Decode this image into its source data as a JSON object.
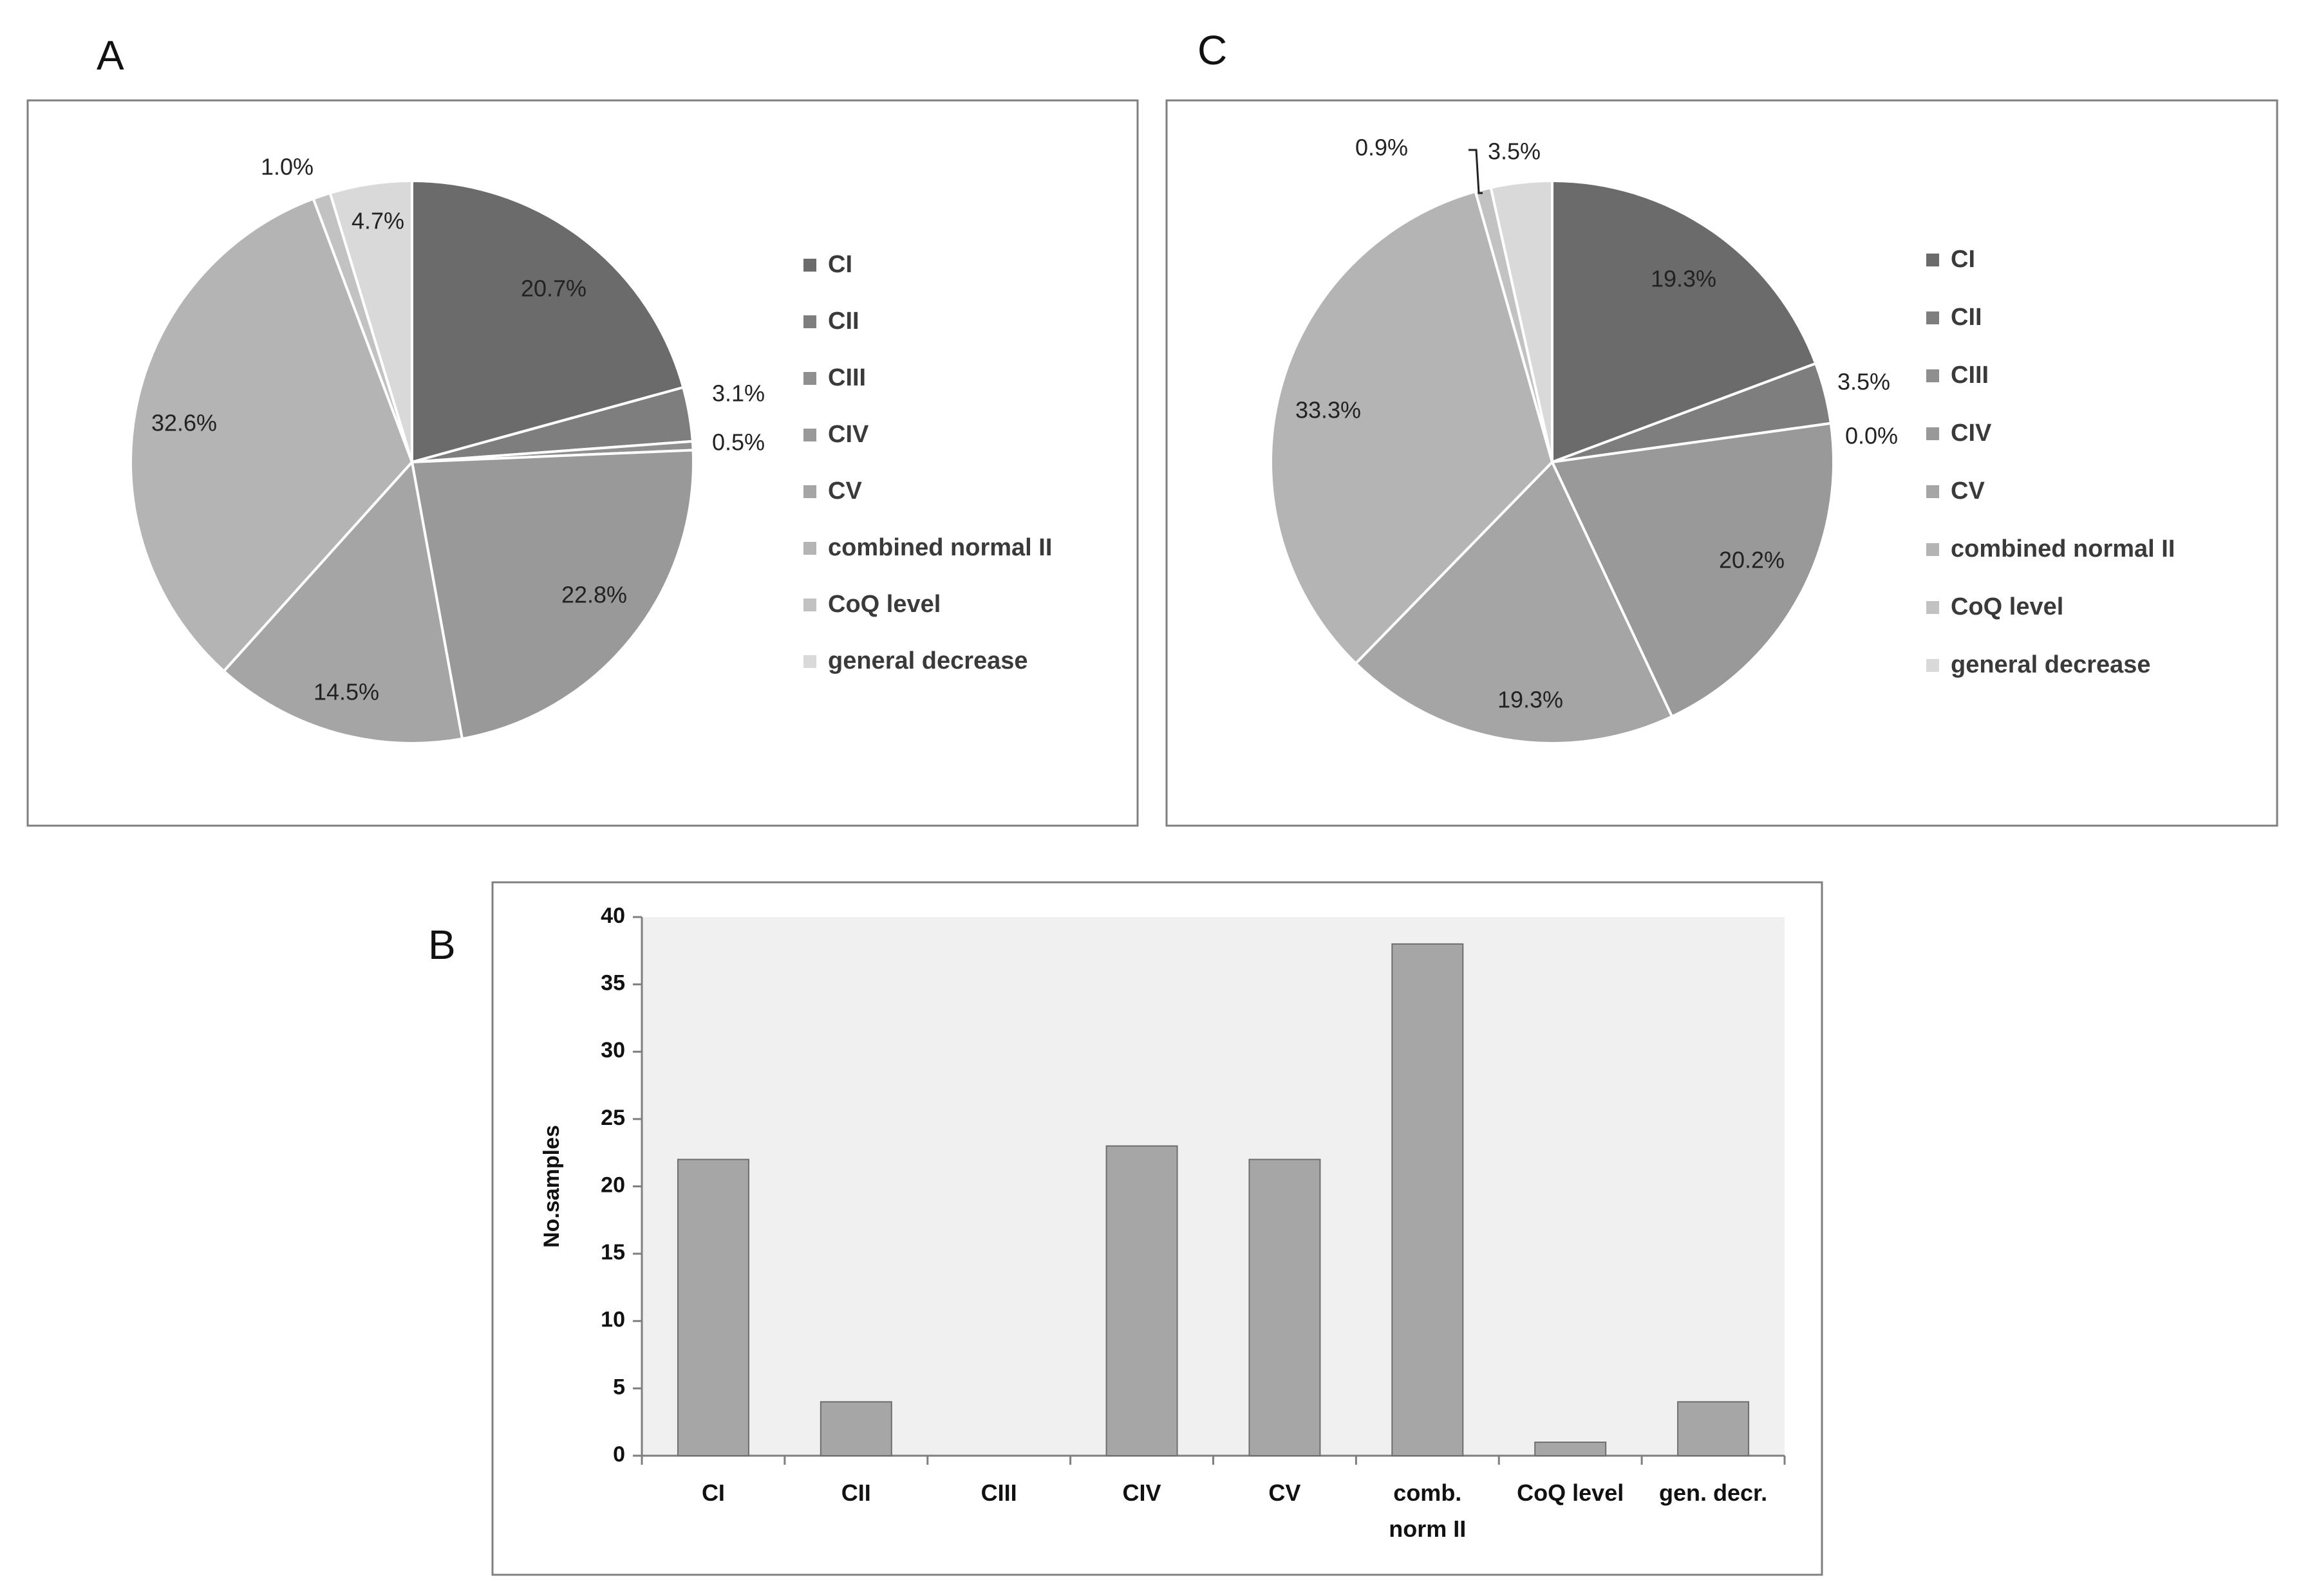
{
  "panels": {
    "a": "A",
    "b": "B",
    "c": "C"
  },
  "legend": {
    "labels": [
      "CI",
      "CII",
      "CIII",
      "CIV",
      "CV",
      "combined normal II",
      "CoQ level",
      "general decrease"
    ],
    "colors": [
      "#6b6b6b",
      "#7e7e7e",
      "#8f8f8f",
      "#999999",
      "#a5a5a5",
      "#b4b4b4",
      "#c2c2c2",
      "#d9d9d9"
    ]
  },
  "chart_data": [
    {
      "id": "A",
      "type": "pie",
      "categories": [
        "CI",
        "CII",
        "CIII",
        "CIV",
        "CV",
        "combined normal II",
        "CoQ level",
        "general decrease"
      ],
      "values": [
        20.7,
        3.1,
        0.5,
        22.8,
        14.5,
        32.6,
        1.0,
        4.7
      ],
      "labels": [
        "20.7%",
        "3.1%",
        "0.5%",
        "22.8%",
        "14.5%",
        "32.6%",
        "1.0%",
        "4.7%"
      ]
    },
    {
      "id": "C",
      "type": "pie",
      "categories": [
        "CI",
        "CII",
        "CIII",
        "CIV",
        "CV",
        "combined normal II",
        "CoQ level",
        "general decrease"
      ],
      "values": [
        19.3,
        3.5,
        0.0,
        20.2,
        19.3,
        33.3,
        0.9,
        3.5
      ],
      "labels": [
        "19.3%",
        "3.5%",
        "0.0%",
        "20.2%",
        "19.3%",
        "33.3%",
        "0.9%",
        "3.5%"
      ]
    },
    {
      "id": "B",
      "type": "bar",
      "categories": [
        "CI",
        "CII",
        "CIII",
        "CIV",
        "CV",
        "comb. norm II",
        "CoQ level",
        "gen. decr."
      ],
      "category_lines": [
        [
          "CI"
        ],
        [
          "CII"
        ],
        [
          "CIII"
        ],
        [
          "CIV"
        ],
        [
          "CV"
        ],
        [
          "comb.",
          "norm II"
        ],
        [
          "CoQ level"
        ],
        [
          "gen. decr."
        ]
      ],
      "values": [
        22,
        4,
        0,
        23,
        22,
        38,
        1,
        4
      ],
      "ylabel": "No.samples",
      "ylim": [
        0,
        40
      ],
      "yticks": [
        0,
        5,
        10,
        15,
        20,
        25,
        30,
        35,
        40
      ],
      "colors": {
        "bar": "#a6a6a6",
        "plot_bg": "#f0f0f0"
      }
    }
  ]
}
